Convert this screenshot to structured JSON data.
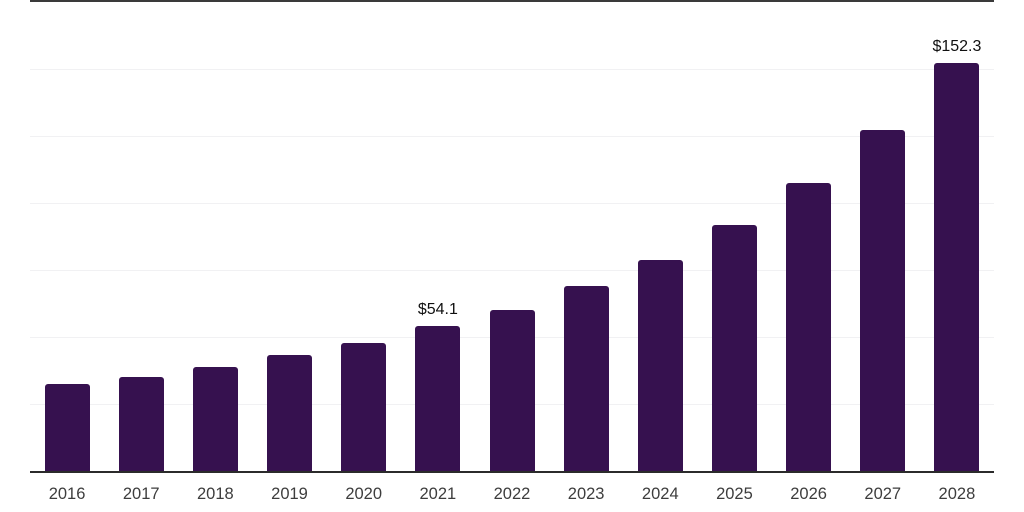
{
  "chart_data": {
    "type": "bar",
    "title": "",
    "xlabel": "",
    "ylabel": "",
    "categories": [
      "2016",
      "2017",
      "2018",
      "2019",
      "2020",
      "2021",
      "2022",
      "2023",
      "2024",
      "2025",
      "2026",
      "2027",
      "2028"
    ],
    "values": [
      32.5,
      35.1,
      38.8,
      43.3,
      47.8,
      54.1,
      60.1,
      69.0,
      78.7,
      91.8,
      107.5,
      127.2,
      152.3
    ],
    "value_labels": {
      "5": "$54.1",
      "12": "$152.3"
    },
    "value_prefix": "$",
    "ylim": [
      0,
      175
    ],
    "gridline_step": 25,
    "grid": "on",
    "legend": "none",
    "colors": {
      "bar": "#36114f",
      "gridline": "#f1f1f3",
      "axis_line": "#2b2b2b",
      "top_rule": "#3a3a3a",
      "year_label": "#3d3d3d",
      "value_label": "#101010",
      "background": "#ffffff"
    }
  }
}
